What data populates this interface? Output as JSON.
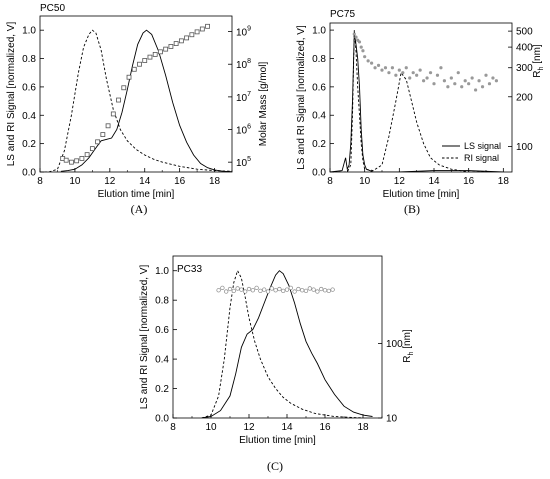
{
  "chart_data": [
    {
      "id": "A",
      "type": "line",
      "panel_label": "(A)",
      "title": "PC50",
      "xlabel": "Elution time [min]",
      "ylabel": "LS and RI Signal [normalized, V]",
      "y2label": "Molar Mass [g/mol]",
      "xlim": [
        8,
        19
      ],
      "ylim": [
        0,
        1.1
      ],
      "y2lim": [
        50000,
        3000000000
      ],
      "y2scale": "log",
      "xticks": [
        "8",
        "10",
        "12",
        "14",
        "16",
        "18"
      ],
      "yticks": [
        "0.0",
        "0.2",
        "0.4",
        "0.6",
        "0.8",
        "1.0"
      ],
      "y2ticks": [
        {
          "base": "10",
          "exp": "5",
          "value": 100000
        },
        {
          "base": "10",
          "exp": "6",
          "value": 1000000
        },
        {
          "base": "10",
          "exp": "7",
          "value": 10000000
        },
        {
          "base": "10",
          "exp": "8",
          "value": 100000000
        },
        {
          "base": "10",
          "exp": "9",
          "value": 1000000000
        }
      ],
      "legend": [],
      "series": [
        {
          "style": "solid",
          "axis": "left",
          "x": [
            9.2,
            9.6,
            10.0,
            10.4,
            10.8,
            11.2,
            11.5,
            11.8,
            12.1,
            12.4,
            12.7,
            13.0,
            13.3,
            13.6,
            13.9,
            14.1,
            14.4,
            14.8,
            15.2,
            15.6,
            16.0,
            16.4,
            16.8,
            17.2,
            17.6,
            18.0,
            18.5,
            19.0
          ],
          "y": [
            0.005,
            0.01,
            0.02,
            0.05,
            0.1,
            0.17,
            0.22,
            0.23,
            0.24,
            0.3,
            0.42,
            0.58,
            0.75,
            0.9,
            0.98,
            1.0,
            0.97,
            0.85,
            0.68,
            0.49,
            0.33,
            0.21,
            0.12,
            0.06,
            0.03,
            0.015,
            0.005,
            0.002
          ]
        },
        {
          "style": "dashed",
          "axis": "left",
          "x": [
            8.0,
            8.5,
            9.0,
            9.4,
            9.8,
            10.2,
            10.5,
            10.8,
            11.0,
            11.2,
            11.5,
            11.8,
            12.2,
            12.6,
            13.0,
            13.5,
            14.0,
            14.5,
            15.0,
            16.0,
            17.0,
            18.0,
            19.0
          ],
          "y": [
            0.0,
            0.0,
            0.02,
            0.15,
            0.4,
            0.7,
            0.88,
            0.97,
            1.0,
            0.98,
            0.86,
            0.66,
            0.44,
            0.3,
            0.22,
            0.16,
            0.12,
            0.09,
            0.07,
            0.04,
            0.02,
            0.01,
            0.005
          ]
        },
        {
          "style": "markers",
          "marker": "square-open",
          "axis": "right",
          "x": [
            9.3,
            9.5,
            9.8,
            10.1,
            10.4,
            10.7,
            11.0,
            11.3,
            11.6,
            11.9,
            12.2,
            12.5,
            12.8,
            13.1,
            13.4,
            13.7,
            14.0,
            14.3,
            14.6,
            14.9,
            15.2,
            15.5,
            15.8,
            16.1,
            16.4,
            16.7,
            17.0,
            17.3,
            17.6
          ],
          "y": [
            130000,
            115000,
            100000,
            110000,
            130000,
            170000,
            260000,
            420000,
            700000,
            1300000,
            3000000,
            8000000,
            19000000,
            40000000,
            70000000,
            100000000,
            130000000,
            165000000,
            200000000,
            240000000,
            290000000,
            350000000,
            430000000,
            520000000,
            640000000,
            800000000,
            980000000,
            1200000000,
            1450000000
          ]
        }
      ]
    },
    {
      "id": "B",
      "type": "line",
      "panel_label": "(B)",
      "title": "PC75",
      "xlabel": "Elution time [min]",
      "ylabel": "LS and RI Signal [normalized, V]",
      "y2label": "Rh [nm]",
      "y2label_main": "R",
      "y2label_sub": "h",
      "y2label_rest": " [nm]",
      "xlim": [
        8,
        18.5
      ],
      "ylim": [
        0,
        1.05
      ],
      "y2lim": [
        70,
        560
      ],
      "y2scale": "log",
      "xticks": [
        "8",
        "10",
        "12",
        "14",
        "16",
        "18"
      ],
      "yticks": [
        "0.0",
        "0.2",
        "0.4",
        "0.6",
        "0.8",
        "1.0"
      ],
      "y2ticks": [
        {
          "label": "100",
          "value": 100
        },
        {
          "label": "200",
          "value": 200
        },
        {
          "label": "300",
          "value": 300
        },
        {
          "label": "400",
          "value": 400
        },
        {
          "label": "500",
          "value": 500
        }
      ],
      "legend": [
        {
          "label": "LS signal",
          "style": "solid"
        },
        {
          "label": "RI signal",
          "style": "dashed"
        }
      ],
      "legend_position": "bottom-right",
      "series": [
        {
          "style": "solid",
          "axis": "left",
          "x": [
            8.0,
            8.7,
            8.9,
            9.0,
            9.1,
            9.2,
            9.3,
            9.4,
            9.5,
            9.6,
            9.7,
            9.8,
            9.9,
            10.0,
            10.1,
            10.3,
            10.5,
            11.0,
            12.0,
            14.0,
            16.0,
            18.0
          ],
          "y": [
            0.0,
            0.01,
            0.1,
            0.02,
            0.05,
            0.2,
            0.5,
            0.98,
            0.9,
            0.8,
            0.6,
            0.3,
            0.12,
            0.05,
            0.02,
            0.01,
            0.0,
            0.0,
            0.0,
            0.01,
            0.01,
            0.0
          ]
        },
        {
          "style": "dashed",
          "axis": "left",
          "x": [
            8.0,
            9.0,
            9.2,
            9.3,
            9.4,
            9.5,
            9.6,
            9.7,
            9.8,
            9.9,
            10.0,
            10.5,
            11.0,
            11.4,
            11.8,
            12.1,
            12.4,
            12.7,
            13.0,
            13.4,
            13.8,
            14.3,
            15.0,
            16.0,
            18.0
          ],
          "y": [
            0.0,
            0.0,
            0.05,
            0.4,
            1.0,
            0.85,
            0.6,
            0.4,
            0.2,
            0.08,
            0.02,
            0.01,
            0.05,
            0.25,
            0.5,
            0.7,
            0.65,
            0.5,
            0.35,
            0.2,
            0.1,
            0.05,
            0.02,
            0.0,
            0.0
          ]
        },
        {
          "style": "markers",
          "marker": "circle-filled-gray",
          "axis": "right",
          "x": [
            9.4,
            9.5,
            9.6,
            9.7,
            9.8,
            9.9,
            10.0,
            10.2,
            10.4,
            10.6,
            10.8,
            11.0,
            11.2,
            11.4,
            11.6,
            11.8,
            12.0,
            12.2,
            12.4,
            12.6,
            12.8,
            13.0,
            13.2,
            13.4,
            13.6,
            13.8,
            14.0,
            14.2,
            14.4,
            14.6,
            14.8,
            15.0,
            15.2,
            15.4,
            15.6,
            15.8,
            16.0,
            16.2,
            16.4,
            16.6,
            16.8,
            17.0,
            17.2,
            17.4,
            17.6
          ],
          "y": [
            480,
            460,
            440,
            430,
            400,
            380,
            350,
            330,
            320,
            300,
            310,
            290,
            300,
            280,
            300,
            270,
            290,
            280,
            300,
            260,
            280,
            270,
            290,
            250,
            260,
            280,
            240,
            270,
            300,
            250,
            230,
            260,
            240,
            280,
            230,
            250,
            240,
            260,
            220,
            250,
            230,
            270,
            240,
            260,
            250
          ]
        }
      ]
    },
    {
      "id": "C",
      "type": "line",
      "panel_label": "(C)",
      "title": "PC33",
      "xlabel": "Elution time [min]",
      "ylabel": "LS and RI Signal [normalized, V]",
      "y2label": "Rh [nm]",
      "y2label_main": "R",
      "y2label_sub": "h",
      "y2label_rest": " [nm]",
      "xlim": [
        8,
        19
      ],
      "ylim": [
        0,
        1.1
      ],
      "y2lim": [
        10,
        1500
      ],
      "y2scale": "log",
      "xticks": [
        "8",
        "10",
        "12",
        "14",
        "16",
        "18"
      ],
      "yticks": [
        "0.0",
        "0.2",
        "0.4",
        "0.6",
        "0.8",
        "1.0"
      ],
      "y2ticks": [
        {
          "label": "10",
          "value": 10
        },
        {
          "label": "100",
          "value": 100
        }
      ],
      "legend": [],
      "series": [
        {
          "style": "solid",
          "axis": "left",
          "x": [
            9.5,
            10.0,
            10.5,
            11.0,
            11.3,
            11.6,
            11.9,
            12.2,
            12.5,
            12.8,
            13.1,
            13.4,
            13.6,
            13.8,
            14.1,
            14.4,
            14.7,
            15.0,
            15.3,
            15.6,
            16.0,
            16.5,
            17.0,
            17.5,
            18.0,
            18.5
          ],
          "y": [
            0.0,
            0.01,
            0.05,
            0.15,
            0.3,
            0.48,
            0.57,
            0.6,
            0.68,
            0.78,
            0.88,
            0.97,
            1.0,
            0.98,
            0.9,
            0.78,
            0.64,
            0.52,
            0.44,
            0.37,
            0.26,
            0.16,
            0.08,
            0.04,
            0.02,
            0.01
          ]
        },
        {
          "style": "dashed",
          "axis": "left",
          "x": [
            9.5,
            10.0,
            10.4,
            10.7,
            11.0,
            11.2,
            11.4,
            11.6,
            11.8,
            12.0,
            12.3,
            12.6,
            13.0,
            13.4,
            13.8,
            14.2,
            14.8,
            15.5,
            16.5,
            18.0
          ],
          "y": [
            0.0,
            0.02,
            0.15,
            0.4,
            0.75,
            0.92,
            1.0,
            0.95,
            0.82,
            0.68,
            0.52,
            0.4,
            0.28,
            0.2,
            0.14,
            0.1,
            0.06,
            0.03,
            0.01,
            0.0
          ]
        },
        {
          "style": "markers",
          "marker": "circle-open-gray",
          "axis": "right",
          "x": [
            10.4,
            10.6,
            10.8,
            11.0,
            11.2,
            11.4,
            11.6,
            11.8,
            12.0,
            12.2,
            12.4,
            12.6,
            12.8,
            13.0,
            13.2,
            13.4,
            13.6,
            13.8,
            14.0,
            14.2,
            14.4,
            14.6,
            14.8,
            15.0,
            15.2,
            15.4,
            15.6,
            15.8,
            16.0,
            16.2,
            16.4
          ],
          "y": [
            520,
            560,
            500,
            540,
            510,
            550,
            530,
            500,
            540,
            520,
            560,
            510,
            530,
            500,
            550,
            520,
            540,
            510,
            530,
            560,
            500,
            540,
            520,
            510,
            550,
            530,
            500,
            540,
            520,
            510,
            530
          ]
        }
      ]
    }
  ]
}
